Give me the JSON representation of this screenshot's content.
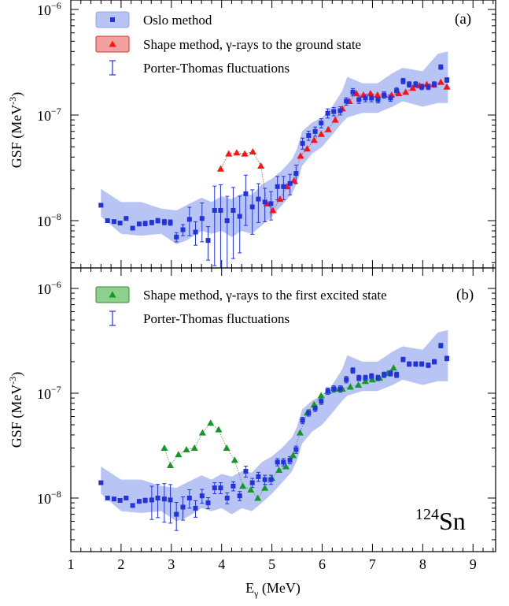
{
  "chart_data": {
    "type": "scatter",
    "isotope_mass": "124",
    "isotope_symbol": "Sn",
    "xlim": [
      1,
      9.45
    ],
    "xticks": [
      "1",
      "2",
      "3",
      "4",
      "5",
      "6",
      "7",
      "8",
      "9"
    ],
    "xlabel_main": "E",
    "xlabel_sub": "γ",
    "xlabel_unit": " (MeV)",
    "panels": [
      {
        "label": "(a)",
        "ylabel_main": "GSF (MeV",
        "ylabel_exp": "-3",
        "ylabel_end": ")",
        "yscale": "log",
        "ylim": [
          3e-09,
          1.3e-06
        ],
        "ytick_base": "10",
        "yticks": [
          {
            "value": 1e-08,
            "exp": "−8"
          },
          {
            "value": 1e-07,
            "exp": "−7"
          },
          {
            "value": 1e-06,
            "exp": "−6"
          }
        ],
        "legend": [
          {
            "marker": "band-square",
            "text": "Oslo method"
          },
          {
            "marker": "band-triangle-red",
            "text": "Shape method, γ-rays to the ground state"
          },
          {
            "marker": "errorbar",
            "text": "Porter-Thomas fluctuations"
          }
        ],
        "band": {
          "x": [
            1.6,
            2.0,
            2.4,
            2.8,
            3.1,
            3.3,
            3.6,
            3.8,
            4.0,
            4.2,
            4.4,
            4.6,
            4.8,
            5.0,
            5.2,
            5.4,
            5.5,
            5.6,
            5.8,
            6.0,
            6.2,
            6.4,
            6.5,
            6.8,
            7.1,
            7.4,
            7.6,
            8.0,
            8.3,
            8.5
          ],
          "lower": [
            1.1e-08,
            7.5e-09,
            7.2e-09,
            7.5e-09,
            6e-09,
            6.5e-09,
            8e-09,
            7.5e-09,
            8e-09,
            7e-09,
            8e-09,
            7.5e-09,
            9e-09,
            1.1e-08,
            1.4e-08,
            1.8e-08,
            2.3e-08,
            3.3e-08,
            4.3e-08,
            5e-08,
            6.5e-08,
            8.5e-08,
            9.5e-08,
            1.05e-07,
            1.05e-07,
            1.2e-07,
            1.35e-07,
            1.2e-07,
            1.3e-07,
            1.3e-07
          ],
          "upper": [
            2e-08,
            1.5e-08,
            1.5e-08,
            1.3e-08,
            1.25e-08,
            1.4e-08,
            1.65e-08,
            1.5e-08,
            1.7e-08,
            1.6e-08,
            1.8e-08,
            1.75e-08,
            2.2e-08,
            2.5e-08,
            3e-08,
            3.8e-08,
            4.8e-08,
            7e-08,
            8.5e-08,
            9.5e-08,
            1.2e-07,
            1.7e-07,
            2.3e-07,
            2e-07,
            2e-07,
            2.5e-07,
            2.8e-07,
            2.6e-07,
            3.8e-07,
            4e-07
          ]
        },
        "series": [
          {
            "name": "Oslo method",
            "marker": "square",
            "color": "#2233dd",
            "x": [
              1.6,
              1.73,
              1.86,
              1.98,
              2.1,
              2.23,
              2.36,
              2.48,
              2.61,
              2.73,
              2.86,
              2.98,
              3.1,
              3.23,
              3.36,
              3.48,
              3.61,
              3.73,
              3.86,
              3.98,
              4.11,
              4.23,
              4.36,
              4.48,
              4.61,
              4.73,
              4.86,
              4.98,
              5.11,
              5.23,
              5.36,
              5.48,
              5.61,
              5.73,
              5.86,
              5.98,
              6.11,
              6.23,
              6.36,
              6.48,
              6.61,
              6.73,
              6.86,
              6.98,
              7.11,
              7.23,
              7.36,
              7.48,
              7.61,
              7.73,
              7.86,
              7.98,
              8.11,
              8.23,
              8.36,
              8.48
            ],
            "y": [
              1.4e-08,
              1e-08,
              9.8e-09,
              9.5e-09,
              1.05e-08,
              8.5e-09,
              9.3e-09,
              9.4e-09,
              9.6e-09,
              1e-08,
              9.7e-09,
              9.6e-09,
              7e-09,
              8.2e-09,
              1.03e-08,
              7.8e-09,
              1.05e-08,
              6.5e-09,
              1.25e-08,
              1.25e-08,
              1e-08,
              1.25e-08,
              1.1e-08,
              1.8e-08,
              1.35e-08,
              1.6e-08,
              1.5e-08,
              1.45e-08,
              2.1e-08,
              2.1e-08,
              2.25e-08,
              2.8e-08,
              5.4e-08,
              6.4e-08,
              7e-08,
              8.4e-08,
              1.04e-07,
              1.08e-07,
              1.1e-07,
              1.35e-07,
              1.65e-07,
              1.4e-07,
              1.45e-07,
              1.45e-07,
              1.4e-07,
              1.55e-07,
              1.45e-07,
              1.7e-07,
              2.1e-07,
              1.95e-07,
              1.95e-07,
              1.85e-07,
              1.85e-07,
              1.95e-07,
              2.85e-07,
              2.15e-07
            ],
            "yerr_rel": [
              0.02,
              0.03,
              0.03,
              0.04,
              0.04,
              0.04,
              0.04,
              0.05,
              0.05,
              0.05,
              0.06,
              0.06,
              0.1,
              0.12,
              0.3,
              0.25,
              0.4,
              0.35,
              0.7,
              0.75,
              0.7,
              0.65,
              0.55,
              0.5,
              0.45,
              0.4,
              0.35,
              0.3,
              0.25,
              0.25,
              0.22,
              0.2,
              0.12,
              0.1,
              0.1,
              0.1,
              0.1,
              0.09,
              0.09,
              0.08,
              0.08,
              0.08,
              0.08,
              0.08,
              0.07,
              0.07,
              0.07,
              0.07,
              0.06,
              0.06,
              0.06,
              0.06,
              0.06,
              0.06,
              0.05,
              0.05
            ]
          },
          {
            "name": "Shape method, γ-rays to the ground state",
            "marker": "triangle",
            "color": "#ff1111",
            "edge": "#bb3333",
            "x": [
              3.98,
              4.14,
              4.3,
              4.46,
              4.62,
              4.78,
              4.9,
              5.02,
              5.16,
              5.3,
              5.44,
              5.57,
              5.7,
              5.84,
              5.98,
              6.12,
              6.26,
              6.4,
              6.54,
              6.68,
              6.82,
              6.96,
              7.1,
              7.24,
              7.38,
              7.52,
              7.66,
              7.8,
              7.94,
              8.08,
              8.22,
              8.36,
              8.48
            ],
            "y": [
              3.1e-08,
              4.3e-08,
              4.4e-08,
              4.3e-08,
              4.5e-08,
              3.3e-08,
              1.45e-08,
              1.25e-08,
              1.6e-08,
              2.1e-08,
              2.4e-08,
              4.1e-08,
              4.8e-08,
              5.8e-08,
              6.6e-08,
              7.3e-08,
              9e-08,
              1.15e-07,
              1.35e-07,
              1.6e-07,
              1.55e-07,
              1.6e-07,
              1.55e-07,
              1.55e-07,
              1.55e-07,
              1.6e-07,
              1.65e-07,
              1.8e-07,
              1.9e-07,
              1.95e-07,
              1.95e-07,
              2.05e-07,
              1.85e-07
            ]
          }
        ]
      },
      {
        "label": "(b)",
        "ylabel_main": "GSF (MeV",
        "ylabel_exp": "-3",
        "ylabel_end": ")",
        "yscale": "log",
        "ylim": [
          3e-09,
          1.3e-06
        ],
        "ytick_base": "10",
        "yticks": [
          {
            "value": 1e-08,
            "exp": "−8"
          },
          {
            "value": 1e-07,
            "exp": "−7"
          },
          {
            "value": 1e-06,
            "exp": "−6"
          }
        ],
        "legend": [
          {
            "marker": "band-triangle-green",
            "text": "Shape method, γ-rays to the first excited state"
          },
          {
            "marker": "errorbar",
            "text": "Porter-Thomas fluctuations"
          }
        ],
        "band": {
          "x": [
            1.6,
            2.0,
            2.4,
            2.8,
            3.1,
            3.3,
            3.6,
            3.8,
            4.0,
            4.2,
            4.4,
            4.6,
            4.8,
            5.0,
            5.2,
            5.4,
            5.5,
            5.6,
            5.8,
            6.0,
            6.2,
            6.4,
            6.5,
            6.8,
            7.1,
            7.4,
            7.6,
            8.0,
            8.3,
            8.5
          ],
          "lower": [
            1.1e-08,
            7.5e-09,
            7.2e-09,
            7.5e-09,
            6e-09,
            6.5e-09,
            8e-09,
            7.5e-09,
            8e-09,
            7e-09,
            8e-09,
            7.5e-09,
            9e-09,
            1.1e-08,
            1.4e-08,
            1.8e-08,
            2.3e-08,
            3.3e-08,
            4.3e-08,
            5e-08,
            6.5e-08,
            8.5e-08,
            9.5e-08,
            1.05e-07,
            1.05e-07,
            1.2e-07,
            1.35e-07,
            1.2e-07,
            1.3e-07,
            1.3e-07
          ],
          "upper": [
            2e-08,
            1.5e-08,
            1.5e-08,
            1.3e-08,
            1.25e-08,
            1.4e-08,
            1.65e-08,
            1.5e-08,
            1.7e-08,
            1.6e-08,
            1.8e-08,
            1.75e-08,
            2.2e-08,
            2.5e-08,
            3e-08,
            3.8e-08,
            4.8e-08,
            7e-08,
            8.5e-08,
            9.5e-08,
            1.2e-07,
            1.7e-07,
            2.3e-07,
            2e-07,
            2e-07,
            2.5e-07,
            2.8e-07,
            2.6e-07,
            3.8e-07,
            4e-07
          ]
        },
        "series": [
          {
            "name": "Oslo method",
            "marker": "square",
            "color": "#2233dd",
            "x": [
              1.6,
              1.73,
              1.86,
              1.98,
              2.1,
              2.23,
              2.36,
              2.48,
              2.61,
              2.73,
              2.86,
              2.98,
              3.1,
              3.23,
              3.36,
              3.48,
              3.61,
              3.73,
              3.86,
              3.98,
              4.11,
              4.23,
              4.36,
              4.48,
              4.61,
              4.73,
              4.86,
              4.98,
              5.11,
              5.23,
              5.36,
              5.48,
              5.61,
              5.73,
              5.86,
              5.98,
              6.11,
              6.23,
              6.36,
              6.48,
              6.61,
              6.73,
              6.86,
              6.98,
              7.11,
              7.23,
              7.36,
              7.48,
              7.61,
              7.73,
              7.86,
              7.98,
              8.11,
              8.23,
              8.36,
              8.48
            ],
            "y": [
              1.4e-08,
              1e-08,
              9.8e-09,
              9.5e-09,
              1e-08,
              8.5e-09,
              9.3e-09,
              9.5e-09,
              9.6e-09,
              1e-08,
              9.8e-09,
              9.6e-09,
              7e-09,
              8.2e-09,
              1e-08,
              8e-09,
              1.05e-08,
              9e-09,
              1.25e-08,
              1.25e-08,
              1e-08,
              1.3e-08,
              1.05e-08,
              1.8e-08,
              1.4e-08,
              1.6e-08,
              1.5e-08,
              1.5e-08,
              2.2e-08,
              2.2e-08,
              2.3e-08,
              2.9e-08,
              5.5e-08,
              6.5e-08,
              7.2e-08,
              8.4e-08,
              1.05e-07,
              1.1e-07,
              1.1e-07,
              1.35e-07,
              1.65e-07,
              1.4e-07,
              1.4e-07,
              1.45e-07,
              1.4e-07,
              1.5e-07,
              1.55e-07,
              1.5e-07,
              2.1e-07,
              1.9e-07,
              1.9e-07,
              1.9e-07,
              1.85e-07,
              2e-07,
              2.85e-07,
              2.15e-07
            ],
            "yerr_rel": [
              0.02,
              0.03,
              0.03,
              0.04,
              0.04,
              0.04,
              0.04,
              0.05,
              0.35,
              0.35,
              0.4,
              0.4,
              0.3,
              0.25,
              0.2,
              0.18,
              0.15,
              0.12,
              0.12,
              0.12,
              0.12,
              0.1,
              0.1,
              0.12,
              0.1,
              0.1,
              0.1,
              0.1,
              0.08,
              0.08,
              0.08,
              0.08,
              0.07,
              0.07,
              0.07,
              0.07,
              0.07,
              0.07,
              0.07,
              0.07,
              0.06,
              0.06,
              0.06,
              0.06,
              0.06,
              0.06,
              0.06,
              0.06,
              0.05,
              0.05,
              0.05,
              0.05,
              0.05,
              0.05,
              0.05,
              0.05
            ]
          },
          {
            "name": "Shape method, γ-rays to the first excited state",
            "marker": "triangle",
            "color": "#119922",
            "edge": "#448844",
            "x": [
              2.86,
              2.98,
              3.14,
              3.3,
              3.46,
              3.62,
              3.78,
              3.94,
              4.1,
              4.26,
              4.42,
              4.58,
              4.72,
              4.86,
              5.0,
              5.14,
              5.28,
              5.42,
              5.56,
              5.7,
              5.84,
              5.98,
              6.12,
              6.26,
              6.4,
              6.56,
              6.72,
              6.86,
              7.0,
              7.14,
              7.3,
              7.42
            ],
            "y": [
              3e-08,
              2.05e-08,
              2.6e-08,
              2.9e-08,
              3e-08,
              4.2e-08,
              5.2e-08,
              4.5e-08,
              3e-08,
              2.3e-08,
              1.3e-08,
              1.2e-08,
              1e-08,
              1.25e-08,
              1.55e-08,
              1.85e-08,
              2e-08,
              2.55e-08,
              4.2e-08,
              6.5e-08,
              7.8e-08,
              9.5e-08,
              1.05e-07,
              1.1e-07,
              1.1e-07,
              1.15e-07,
              1.2e-07,
              1.3e-07,
              1.35e-07,
              1.4e-07,
              1.55e-07,
              1.75e-07
            ]
          }
        ]
      }
    ]
  },
  "colors": {
    "band": "#b8c4f4",
    "oslo": "#2233dd",
    "ground": "#ff1111",
    "excited": "#119922"
  }
}
